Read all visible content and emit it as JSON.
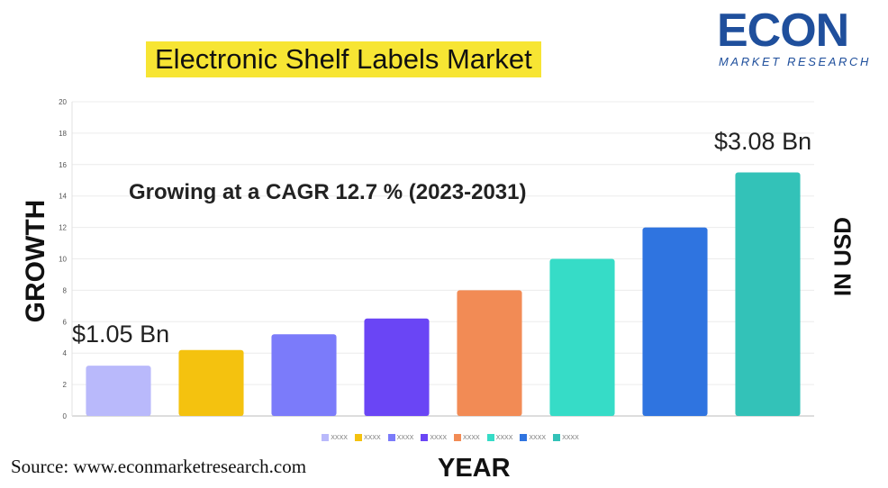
{
  "title": "Electronic Shelf Labels Market",
  "logo": {
    "main": "ECON",
    "sub": "MARKET RESEARCH",
    "accent": "#f2c20e",
    "brand": "#1f4f9c"
  },
  "annotations": {
    "cagr": "Growing at a CAGR 12.7 % (2023-2031)",
    "first_value": "$1.05 Bn",
    "last_value": "$3.08 Bn"
  },
  "source": "Source: www.econmarketresearch.com",
  "chart_data": {
    "type": "bar",
    "xlabel": "YEAR",
    "ylabel": "GROWTH",
    "ylabel_right": "IN USD",
    "ylim": [
      0,
      20
    ],
    "yticks": [
      0,
      2,
      4,
      6,
      8,
      10,
      12,
      14,
      16,
      18,
      20
    ],
    "grid": true,
    "legend_placement": "bottom",
    "categories": [
      "XXXX",
      "XXXX",
      "XXXX",
      "XXXX",
      "XXXX",
      "XXXX",
      "XXXX",
      "XXXX"
    ],
    "values": [
      3.2,
      4.2,
      5.2,
      6.2,
      8.0,
      10.0,
      12.0,
      15.5
    ],
    "colors": [
      "#b9b9fb",
      "#f4c20f",
      "#7b7bfa",
      "#6a45f5",
      "#f28b55",
      "#36dcc7",
      "#2f74e0",
      "#33c2b8"
    ]
  }
}
